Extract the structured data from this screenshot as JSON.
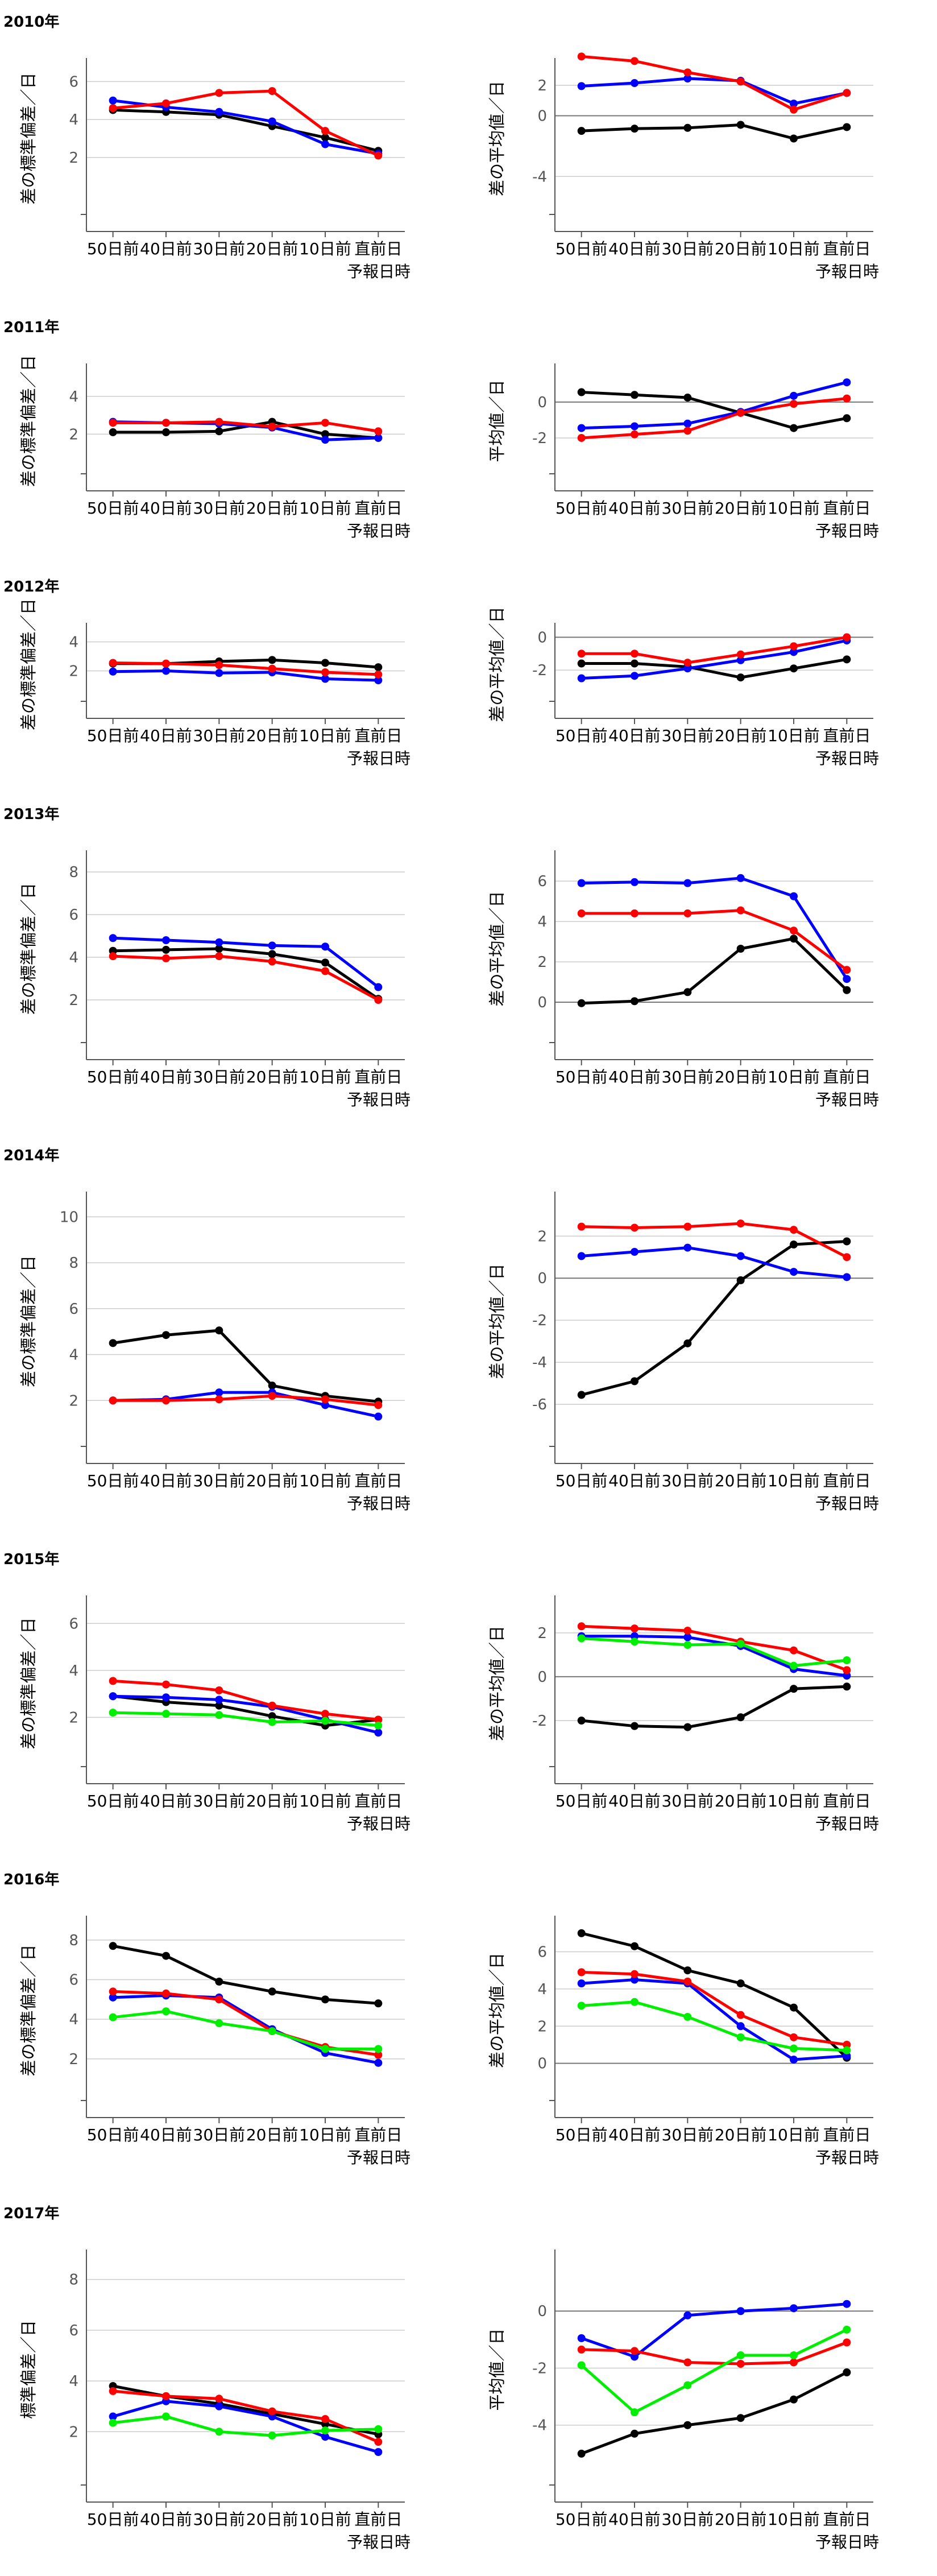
{
  "chart_data": [
    {
      "type": "line",
      "year_label": "2010年",
      "ylabel": "差の標準偏差／日",
      "xlabel": "予報日時",
      "categories": [
        "50日前",
        "40日前",
        "30日前",
        "20日前",
        "10日前",
        "直前日"
      ],
      "ylim": [
        -1,
        7
      ],
      "yticks": [
        "2",
        "4",
        "6"
      ],
      "grid": true,
      "series": [
        {
          "color": "#000000",
          "values": [
            4.5,
            4.4,
            4.25,
            3.65,
            3.05,
            2.35
          ]
        },
        {
          "color": "#0000ff",
          "values": [
            5.0,
            4.65,
            4.4,
            3.9,
            2.7,
            2.2
          ]
        },
        {
          "color": "#ff0000",
          "values": [
            4.6,
            4.85,
            5.4,
            5.5,
            3.4,
            2.1
          ]
        }
      ]
    },
    {
      "type": "line",
      "ylabel": "差の平均値／日",
      "xlabel": "予報日時",
      "categories": [
        "50日前",
        "40日前",
        "30日前",
        "20日前",
        "10日前",
        "直前日"
      ],
      "ylim": [
        -6.5,
        3.5
      ],
      "yticks": [
        "-4",
        "0",
        "2"
      ],
      "zero_line": true,
      "grid": true,
      "series": [
        {
          "color": "#000000",
          "values": [
            -1.0,
            -0.85,
            -0.8,
            -0.6,
            -1.5,
            -0.75
          ]
        },
        {
          "color": "#0000ff",
          "values": [
            1.95,
            2.15,
            2.45,
            2.3,
            0.8,
            1.5
          ]
        },
        {
          "color": "#ff0000",
          "values": [
            3.9,
            3.6,
            2.85,
            2.25,
            0.4,
            1.5
          ]
        }
      ]
    },
    {
      "type": "line",
      "year_label": "2011年",
      "ylabel": "差の標準偏差／日",
      "xlabel": "予報日時",
      "categories": [
        "50日前",
        "40日前",
        "30日前",
        "20日前",
        "10日前",
        "直前日"
      ],
      "ylim": [
        -0.1,
        5.5
      ],
      "yticks": [
        "2",
        "4"
      ],
      "grid": true,
      "series": [
        {
          "color": "#000000",
          "values": [
            2.1,
            2.1,
            2.15,
            2.65,
            2.0,
            1.8
          ]
        },
        {
          "color": "#0000ff",
          "values": [
            2.65,
            2.6,
            2.55,
            2.35,
            1.7,
            1.8
          ]
        },
        {
          "color": "#ff0000",
          "values": [
            2.6,
            2.6,
            2.65,
            2.4,
            2.6,
            2.15
          ]
        }
      ]
    },
    {
      "type": "line",
      "ylabel": "平均値／日",
      "xlabel": "予報日時",
      "categories": [
        "50日前",
        "40日前",
        "30日前",
        "20日前",
        "10日前",
        "直前日"
      ],
      "ylim": [
        -4,
        1.9
      ],
      "yticks": [
        "-2",
        "0"
      ],
      "zero_line": true,
      "grid": true,
      "series": [
        {
          "color": "#000000",
          "values": [
            0.55,
            0.4,
            0.25,
            -0.6,
            -1.45,
            -0.9
          ]
        },
        {
          "color": "#0000ff",
          "values": [
            -1.45,
            -1.35,
            -1.2,
            -0.55,
            0.35,
            1.1
          ]
        },
        {
          "color": "#ff0000",
          "values": [
            -2.0,
            -1.8,
            -1.6,
            -0.6,
            -0.1,
            0.2
          ]
        }
      ]
    },
    {
      "type": "line",
      "year_label": "2012年",
      "ylabel": "差の標準偏差／日",
      "xlabel": "予報日時",
      "categories": [
        "50日前",
        "40日前",
        "30日前",
        "20日前",
        "10日前",
        "直前日"
      ],
      "ylim": [
        -0.1,
        5.0
      ],
      "yticks": [
        "2",
        "4"
      ],
      "grid": true,
      "series": [
        {
          "color": "#000000",
          "values": [
            2.5,
            2.5,
            2.65,
            2.75,
            2.55,
            2.25
          ]
        },
        {
          "color": "#0000ff",
          "values": [
            1.95,
            2.0,
            1.85,
            1.9,
            1.45,
            1.35
          ]
        },
        {
          "color": "#ff0000",
          "values": [
            2.55,
            2.5,
            2.4,
            2.15,
            1.9,
            1.75
          ]
        }
      ]
    },
    {
      "type": "line",
      "ylabel": "差の平均値／日",
      "xlabel": "予報日時",
      "categories": [
        "50日前",
        "40日前",
        "30日前",
        "20日前",
        "10日前",
        "直前日"
      ],
      "ylim": [
        -3.9,
        0.6
      ],
      "yticks": [
        "-2",
        "0"
      ],
      "zero_line": true,
      "grid": true,
      "series": [
        {
          "color": "#000000",
          "values": [
            -1.6,
            -1.6,
            -1.8,
            -2.45,
            -1.9,
            -1.35
          ]
        },
        {
          "color": "#0000ff",
          "values": [
            -2.5,
            -2.35,
            -1.9,
            -1.4,
            -0.9,
            -0.2
          ]
        },
        {
          "color": "#ff0000",
          "values": [
            -1.0,
            -1.0,
            -1.55,
            -1.05,
            -0.55,
            0.0
          ]
        }
      ]
    },
    {
      "type": "line",
      "year_label": "2013年",
      "ylabel": "差の標準偏差／日",
      "xlabel": "予報日時",
      "categories": [
        "50日前",
        "40日前",
        "30日前",
        "20日前",
        "10日前",
        "直前日"
      ],
      "ylim": [
        0,
        8.8
      ],
      "yticks": [
        "2",
        "4",
        "6",
        "8"
      ],
      "grid": true,
      "series": [
        {
          "color": "#000000",
          "values": [
            4.3,
            4.35,
            4.4,
            4.15,
            3.75,
            2.05
          ]
        },
        {
          "color": "#0000ff",
          "values": [
            4.9,
            4.8,
            4.7,
            4.55,
            4.5,
            2.6
          ]
        },
        {
          "color": "#ff0000",
          "values": [
            4.05,
            3.95,
            4.05,
            3.8,
            3.35,
            2.0
          ]
        }
      ]
    },
    {
      "type": "line",
      "ylabel": "差の平均値／日",
      "xlabel": "予報日時",
      "categories": [
        "50日前",
        "40日前",
        "30日前",
        "20日前",
        "10日前",
        "直前日"
      ],
      "ylim": [
        -2,
        7.3
      ],
      "yticks": [
        "0",
        "2",
        "4",
        "6"
      ],
      "zero_line": true,
      "grid": true,
      "series": [
        {
          "color": "#000000",
          "values": [
            -0.05,
            0.05,
            0.5,
            2.65,
            3.15,
            0.6
          ]
        },
        {
          "color": "#0000ff",
          "values": [
            5.9,
            5.95,
            5.9,
            6.15,
            5.25,
            1.15
          ]
        },
        {
          "color": "#ff0000",
          "values": [
            4.4,
            4.4,
            4.4,
            4.55,
            3.55,
            1.6
          ]
        }
      ]
    },
    {
      "type": "line",
      "year_label": "2014年",
      "ylabel": "差の標準偏差／日",
      "xlabel": "予報日時",
      "categories": [
        "50日前",
        "40日前",
        "30日前",
        "20日前",
        "10日前",
        "直前日"
      ],
      "ylim": [
        0,
        10.9
      ],
      "yticks": [
        "2",
        "4",
        "6",
        "8",
        "10"
      ],
      "grid": true,
      "series": [
        {
          "color": "#000000",
          "values": [
            4.5,
            4.85,
            5.05,
            2.65,
            2.2,
            1.95
          ]
        },
        {
          "color": "#0000ff",
          "values": [
            2.0,
            2.05,
            2.35,
            2.35,
            1.8,
            1.3
          ]
        },
        {
          "color": "#ff0000",
          "values": [
            2.0,
            2.0,
            2.05,
            2.2,
            2.05,
            1.8
          ]
        }
      ]
    },
    {
      "type": "line",
      "ylabel": "差の平均値／日",
      "xlabel": "予報日時",
      "categories": [
        "50日前",
        "40日前",
        "30日前",
        "20日前",
        "10日前",
        "直前日"
      ],
      "ylim": [
        -8,
        3.9
      ],
      "yticks": [
        "-6",
        "-4",
        "-2",
        "0",
        "2"
      ],
      "zero_line": true,
      "grid": true,
      "series": [
        {
          "color": "#000000",
          "values": [
            -5.55,
            -4.9,
            -3.1,
            -0.1,
            1.6,
            1.75
          ]
        },
        {
          "color": "#0000ff",
          "values": [
            1.05,
            1.25,
            1.45,
            1.05,
            0.3,
            0.05
          ]
        },
        {
          "color": "#ff0000",
          "values": [
            2.45,
            2.4,
            2.45,
            2.6,
            2.3,
            1.0
          ]
        }
      ]
    },
    {
      "type": "line",
      "year_label": "2015年",
      "ylabel": "差の標準偏差／日",
      "xlabel": "予報日時",
      "categories": [
        "50日前",
        "40日前",
        "30日前",
        "20日前",
        "10日前",
        "直前日"
      ],
      "ylim": [
        -0.1,
        7.0
      ],
      "yticks": [
        "2",
        "4",
        "6"
      ],
      "grid": true,
      "series": [
        {
          "color": "#000000",
          "values": [
            2.9,
            2.65,
            2.5,
            2.05,
            1.65,
            1.9
          ]
        },
        {
          "color": "#0000ff",
          "values": [
            2.9,
            2.85,
            2.75,
            2.45,
            1.9,
            1.35
          ]
        },
        {
          "color": "#ff0000",
          "values": [
            3.55,
            3.4,
            3.15,
            2.5,
            2.15,
            1.9
          ]
        },
        {
          "color": "#00ee00",
          "values": [
            2.2,
            2.15,
            2.1,
            1.8,
            1.85,
            1.65
          ]
        }
      ]
    },
    {
      "type": "line",
      "ylabel": "差の平均値／日",
      "xlabel": "予報日時",
      "categories": [
        "50日前",
        "40日前",
        "30日前",
        "20日前",
        "10日前",
        "直前日"
      ],
      "ylim": [
        -4.1,
        3.5
      ],
      "yticks": [
        "-2",
        "0",
        "2"
      ],
      "zero_line": true,
      "grid": true,
      "series": [
        {
          "color": "#000000",
          "values": [
            -2.0,
            -2.25,
            -2.3,
            -1.85,
            -0.55,
            -0.45
          ]
        },
        {
          "color": "#0000ff",
          "values": [
            1.85,
            1.85,
            1.8,
            1.4,
            0.35,
            0.05
          ]
        },
        {
          "color": "#ff0000",
          "values": [
            2.3,
            2.2,
            2.1,
            1.6,
            1.2,
            0.3
          ]
        },
        {
          "color": "#00ee00",
          "values": [
            1.75,
            1.6,
            1.45,
            1.5,
            0.5,
            0.75
          ]
        }
      ]
    },
    {
      "type": "line",
      "year_label": "2016年",
      "ylabel": "差の標準偏差／日",
      "xlabel": "予報日時",
      "categories": [
        "50日前",
        "40日前",
        "30日前",
        "20日前",
        "10日前",
        "直前日"
      ],
      "ylim": [
        -0.1,
        9.0
      ],
      "yticks": [
        "2",
        "4",
        "6",
        "8"
      ],
      "grid": true,
      "series": [
        {
          "color": "#000000",
          "values": [
            7.7,
            7.2,
            5.9,
            5.4,
            5.0,
            4.8
          ]
        },
        {
          "color": "#0000ff",
          "values": [
            5.1,
            5.2,
            5.1,
            3.5,
            2.3,
            1.8
          ]
        },
        {
          "color": "#ff0000",
          "values": [
            5.4,
            5.3,
            5.0,
            3.4,
            2.6,
            2.2
          ]
        },
        {
          "color": "#00ee00",
          "values": [
            4.1,
            4.4,
            3.8,
            3.4,
            2.5,
            2.5
          ]
        }
      ]
    },
    {
      "type": "line",
      "ylabel": "差の平均値／日",
      "xlabel": "予報日時",
      "categories": [
        "50日前",
        "40日前",
        "30日前",
        "20日前",
        "10日前",
        "直前日"
      ],
      "ylim": [
        -2,
        7.7
      ],
      "yticks": [
        "0",
        "2",
        "4",
        "6"
      ],
      "zero_line": true,
      "grid": true,
      "series": [
        {
          "color": "#000000",
          "values": [
            7.0,
            6.3,
            5.0,
            4.3,
            3.0,
            0.3
          ]
        },
        {
          "color": "#0000ff",
          "values": [
            4.3,
            4.5,
            4.3,
            2.0,
            0.2,
            0.4
          ]
        },
        {
          "color": "#ff0000",
          "values": [
            4.9,
            4.8,
            4.4,
            2.6,
            1.4,
            1.0
          ]
        },
        {
          "color": "#00ee00",
          "values": [
            3.1,
            3.3,
            2.5,
            1.4,
            0.8,
            0.7
          ]
        }
      ]
    },
    {
      "type": "line",
      "year_label": "2017年",
      "ylabel": "標準偏差／日",
      "xlabel": "予報日時",
      "categories": [
        "50日前",
        "40日前",
        "30日前",
        "20日前",
        "10日前",
        "直前日"
      ],
      "ylim": [
        -0.1,
        9.0
      ],
      "yticks": [
        "2",
        "4",
        "6",
        "8"
      ],
      "grid": true,
      "series": [
        {
          "color": "#000000",
          "values": [
            3.8,
            3.4,
            3.1,
            2.7,
            2.3,
            1.9
          ]
        },
        {
          "color": "#0000ff",
          "values": [
            2.6,
            3.2,
            3.0,
            2.6,
            1.8,
            1.2
          ]
        },
        {
          "color": "#ff0000",
          "values": [
            3.6,
            3.4,
            3.3,
            2.8,
            2.5,
            1.6
          ]
        },
        {
          "color": "#00ee00",
          "values": [
            2.35,
            2.6,
            2.0,
            1.85,
            2.05,
            2.1
          ]
        }
      ]
    },
    {
      "type": "line",
      "ylabel": "平均値／日",
      "xlabel": "予報日時",
      "categories": [
        "50日前",
        "40日前",
        "30日前",
        "20日前",
        "10日前",
        "直前日"
      ],
      "ylim": [
        -6.1,
        2.0
      ],
      "yticks": [
        "-4",
        "-2",
        "0"
      ],
      "zero_line": true,
      "grid": true,
      "series": [
        {
          "color": "#000000",
          "values": [
            -5.0,
            -4.3,
            -4.0,
            -3.75,
            -3.1,
            -2.15
          ]
        },
        {
          "color": "#0000ff",
          "values": [
            -0.95,
            -1.6,
            -0.15,
            0.0,
            0.1,
            0.25
          ]
        },
        {
          "color": "#ff0000",
          "values": [
            -1.35,
            -1.4,
            -1.8,
            -1.85,
            -1.8,
            -1.1
          ]
        },
        {
          "color": "#00ee00",
          "values": [
            -1.9,
            -3.55,
            -2.6,
            -1.55,
            -1.55,
            -0.65
          ]
        }
      ]
    }
  ]
}
